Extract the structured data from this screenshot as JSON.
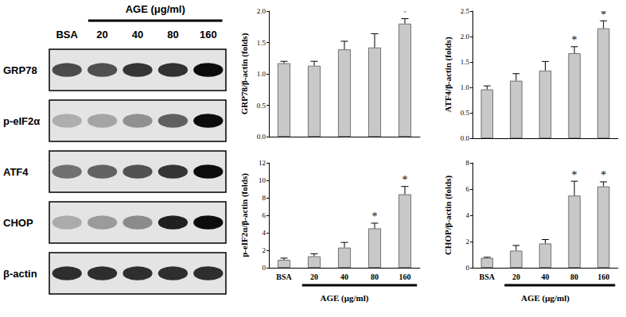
{
  "blot": {
    "title": "AGE (μg/ml)",
    "lanes": [
      "BSA",
      "20",
      "40",
      "80",
      "160"
    ],
    "rows": [
      "GRP78",
      "p-eIF2α",
      "ATF4",
      "CHOP",
      "β-actin"
    ]
  },
  "chart_data": [
    {
      "type": "bar",
      "y_label": "GRP78/β-actin (folds)",
      "categories": [
        "BSA",
        "20",
        "40",
        "80",
        "160"
      ],
      "values": [
        1.17,
        1.13,
        1.39,
        1.42,
        1.8
      ],
      "errors": [
        0.03,
        0.07,
        0.13,
        0.22,
        0.08
      ],
      "annotations": [
        {
          "category": "160",
          "text": "*"
        }
      ],
      "color": "#c8c8c8",
      "ylim": [
        0,
        2
      ],
      "yticks": [
        {
          "value": 0,
          "label": "0.0"
        },
        {
          "value": 0.5,
          "label": "0.5"
        },
        {
          "value": 1,
          "label": "1.0"
        },
        {
          "value": 1.5,
          "label": "1.5"
        },
        {
          "value": 2,
          "label": "2.0"
        }
      ],
      "grid": false,
      "tick_labels": "y"
    },
    {
      "type": "bar",
      "y_label": "ATF4/β-actin (folds)",
      "categories": [
        "BSA",
        "20",
        "40",
        "80",
        "160"
      ],
      "values": [
        0.96,
        1.13,
        1.33,
        1.67,
        2.16
      ],
      "errors": [
        0.07,
        0.14,
        0.18,
        0.13,
        0.15
      ],
      "annotations": [
        {
          "category": "80",
          "text": "*"
        },
        {
          "category": "160",
          "text": "*"
        }
      ],
      "color": "#c8c8c8",
      "ylim": [
        0,
        2.5
      ],
      "yticks": [
        {
          "value": 0,
          "label": "0.0"
        },
        {
          "value": 0.5,
          "label": "0.5"
        },
        {
          "value": 1,
          "label": "1.0"
        },
        {
          "value": 1.5,
          "label": "1.5"
        },
        {
          "value": 2,
          "label": "2.0"
        },
        {
          "value": 2.5,
          "label": "2.5"
        }
      ],
      "grid": false,
      "tick_labels": "y"
    },
    {
      "type": "bar",
      "y_label": "p-eIF2α/β-actin (folds)",
      "x_label": "AGE (μg/ml)",
      "categories": [
        "BSA",
        "20",
        "40",
        "80",
        "160"
      ],
      "values": [
        0.9,
        1.3,
        2.3,
        4.5,
        8.4
      ],
      "errors": [
        0.2,
        0.3,
        0.6,
        0.6,
        0.9
      ],
      "annotations": [
        {
          "category": "80",
          "text": "*"
        },
        {
          "category": "160",
          "text": "*"
        }
      ],
      "color": "#c8c8c8",
      "ylim": [
        0,
        12
      ],
      "yticks": [
        0,
        2,
        4,
        6,
        8,
        10,
        12
      ],
      "grid": false
    },
    {
      "type": "bar",
      "y_label": "CHOP/β-actin (folds)",
      "x_label": "AGE (μg/ml)",
      "categories": [
        "BSA",
        "20",
        "40",
        "80",
        "160"
      ],
      "values": [
        0.75,
        1.3,
        1.85,
        5.5,
        6.2
      ],
      "errors": [
        0.05,
        0.4,
        0.3,
        1.1,
        0.35
      ],
      "annotations": [
        {
          "category": "80",
          "text": "*"
        },
        {
          "category": "160",
          "text": "*"
        }
      ],
      "color": "#c8c8c8",
      "ylim": [
        0,
        8
      ],
      "yticks": [
        0,
        2,
        4,
        6,
        8
      ],
      "grid": false
    }
  ]
}
